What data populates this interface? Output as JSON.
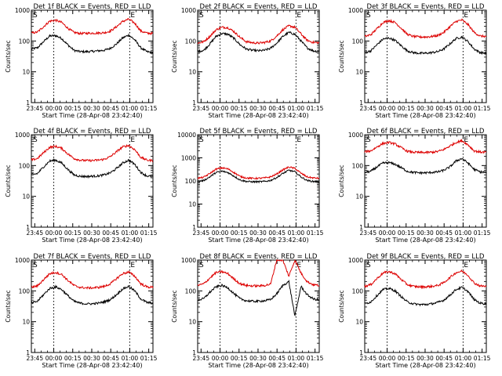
{
  "chart_data": [
    {
      "type": "line",
      "title": "Det 1f BLACK = Events, RED = LLD",
      "xlabel": "Start Time (28-Apr-08 23:42:40)",
      "ylabel": "Counts/sec",
      "ylim": [
        1,
        1000
      ],
      "yscale": "log",
      "x_ticks": [
        "23:45",
        "00:00",
        "00:15",
        "00:30",
        "00:45",
        "01:00",
        "01:15"
      ],
      "y_ticks": [
        "1",
        "10",
        "100",
        "1000"
      ],
      "markers": [
        "S",
        "E"
      ],
      "series": [
        {
          "name": "Events",
          "color": "#000000",
          "values": [
            55,
            60,
            95,
            145,
            150,
            120,
            75,
            50,
            45,
            45,
            46,
            48,
            50,
            58,
            80,
            125,
            155,
            110,
            60,
            45,
            42
          ]
        },
        {
          "name": "LLD",
          "color": "#dd0000",
          "values": [
            180,
            195,
            290,
            440,
            470,
            400,
            260,
            190,
            175,
            178,
            180,
            182,
            185,
            210,
            290,
            430,
            510,
            380,
            210,
            180,
            175
          ]
        }
      ]
    },
    {
      "type": "line",
      "title": "Det 2f BLACK = Events, RED = LLD",
      "xlabel": "Start Time (28-Apr-08 23:42:40)",
      "ylabel": "Counts/sec",
      "ylim": [
        1,
        1000
      ],
      "yscale": "log",
      "x_ticks": [
        "23:45",
        "00:00",
        "00:15",
        "00:30",
        "00:45",
        "01:00",
        "01:15"
      ],
      "y_ticks": [
        "1",
        "10",
        "100",
        "1000"
      ],
      "markers": [
        "S",
        "E"
      ],
      "series": [
        {
          "name": "Events",
          "color": "#000000",
          "values": [
            45,
            50,
            80,
            140,
            175,
            165,
            120,
            75,
            55,
            50,
            48,
            50,
            58,
            85,
            140,
            190,
            165,
            100,
            60,
            48,
            45
          ]
        },
        {
          "name": "LLD",
          "color": "#dd0000",
          "values": [
            85,
            95,
            140,
            230,
            280,
            270,
            200,
            130,
            95,
            88,
            85,
            90,
            100,
            145,
            230,
            310,
            280,
            170,
            105,
            90,
            88
          ]
        }
      ]
    },
    {
      "type": "line",
      "title": "Det 3f BLACK = Events, RED = LLD",
      "xlabel": "Start Time (28-Apr-08 23:42:40)",
      "ylabel": "Counts/sec",
      "ylim": [
        1,
        1000
      ],
      "yscale": "log",
      "x_ticks": [
        "23:45",
        "00:00",
        "00:15",
        "00:30",
        "00:45",
        "01:00",
        "01:15"
      ],
      "y_ticks": [
        "1",
        "10",
        "100",
        "1000"
      ],
      "markers": [
        "S",
        "E"
      ],
      "series": [
        {
          "name": "Events",
          "color": "#000000",
          "values": [
            42,
            48,
            75,
            115,
            125,
            105,
            70,
            48,
            42,
            40,
            40,
            42,
            45,
            55,
            80,
            120,
            135,
            95,
            55,
            42,
            40
          ]
        },
        {
          "name": "LLD",
          "color": "#dd0000",
          "values": [
            140,
            160,
            250,
            400,
            460,
            400,
            260,
            165,
            140,
            135,
            135,
            140,
            150,
            190,
            290,
            430,
            480,
            340,
            190,
            145,
            140
          ]
        }
      ]
    },
    {
      "type": "line",
      "title": "Det 4f BLACK = Events, RED = LLD",
      "xlabel": "Start Time (28-Apr-08 23:42:40)",
      "ylabel": "Counts/sec",
      "ylim": [
        1,
        1000
      ],
      "yscale": "log",
      "x_ticks": [
        "23:45",
        "00:00",
        "00:15",
        "00:30",
        "00:45",
        "01:00",
        "01:15"
      ],
      "y_ticks": [
        "1",
        "10",
        "100",
        "1000"
      ],
      "markers": [
        "S",
        "E"
      ],
      "series": [
        {
          "name": "Events",
          "color": "#000000",
          "values": [
            50,
            55,
            90,
            140,
            150,
            120,
            75,
            50,
            45,
            44,
            45,
            46,
            50,
            58,
            80,
            120,
            150,
            110,
            60,
            46,
            44
          ]
        },
        {
          "name": "LLD",
          "color": "#dd0000",
          "values": [
            150,
            170,
            260,
            390,
            420,
            360,
            240,
            170,
            150,
            145,
            145,
            150,
            160,
            195,
            280,
            400,
            450,
            330,
            185,
            150,
            145
          ]
        }
      ]
    },
    {
      "type": "line",
      "title": "Det 5f BLACK = Events, RED = LLD",
      "xlabel": "Start Time (28-Apr-08 23:42:40)",
      "ylabel": "Counts/sec",
      "ylim": [
        1,
        10000
      ],
      "yscale": "log",
      "x_ticks": [
        "23:45",
        "00:00",
        "00:15",
        "00:30",
        "00:45",
        "01:00",
        "01:15"
      ],
      "y_ticks": [
        "1",
        "10",
        "100",
        "1000",
        "10000"
      ],
      "markers": [
        "S",
        "E"
      ],
      "series": [
        {
          "name": "Events",
          "color": "#000000",
          "values": [
            95,
            105,
            150,
            230,
            265,
            230,
            160,
            110,
            95,
            92,
            92,
            95,
            105,
            140,
            210,
            290,
            250,
            150,
            105,
            95,
            92
          ]
        },
        {
          "name": "LLD",
          "color": "#dd0000",
          "values": [
            130,
            145,
            210,
            320,
            370,
            330,
            230,
            155,
            135,
            130,
            130,
            135,
            150,
            200,
            300,
            400,
            350,
            215,
            150,
            135,
            130
          ]
        }
      ]
    },
    {
      "type": "line",
      "title": "Det 6f BLACK = Events, RED = LLD",
      "xlabel": "Start Time (28-Apr-08 23:42:40)",
      "ylabel": "Counts/sec",
      "ylim": [
        1,
        1000
      ],
      "yscale": "log",
      "x_ticks": [
        "23:45",
        "00:00",
        "00:15",
        "00:30",
        "00:45",
        "01:00",
        "01:15"
      ],
      "y_ticks": [
        "1",
        "10",
        "100",
        "1000"
      ],
      "markers": [
        "S",
        "E"
      ],
      "series": [
        {
          "name": "Events",
          "color": "#000000",
          "values": [
            60,
            65,
            90,
            120,
            125,
            110,
            85,
            65,
            60,
            58,
            58,
            60,
            62,
            70,
            90,
            140,
            170,
            120,
            75,
            62,
            60
          ]
        },
        {
          "name": "LLD",
          "color": "#dd0000",
          "values": [
            280,
            300,
            400,
            520,
            560,
            500,
            380,
            290,
            270,
            265,
            265,
            270,
            285,
            330,
            430,
            560,
            640,
            470,
            300,
            275,
            270
          ]
        }
      ]
    },
    {
      "type": "line",
      "title": "Det 7f BLACK = Events, RED = LLD",
      "xlabel": "Start Time (28-Apr-08 23:42:40)",
      "ylabel": "Counts/sec",
      "ylim": [
        1,
        1000
      ],
      "yscale": "log",
      "x_ticks": [
        "23:45",
        "00:00",
        "00:15",
        "00:30",
        "00:45",
        "01:00",
        "01:15"
      ],
      "y_ticks": [
        "1",
        "10",
        "100",
        "1000"
      ],
      "markers": [
        "S",
        "E"
      ],
      "series": [
        {
          "name": "Events",
          "color": "#000000",
          "values": [
            40,
            46,
            75,
            120,
            135,
            110,
            70,
            46,
            40,
            38,
            38,
            40,
            44,
            52,
            75,
            115,
            140,
            100,
            55,
            42,
            40
          ]
        },
        {
          "name": "LLD",
          "color": "#dd0000",
          "values": [
            130,
            145,
            230,
            360,
            400,
            340,
            220,
            150,
            130,
            125,
            125,
            130,
            140,
            170,
            250,
            360,
            410,
            300,
            170,
            135,
            130
          ]
        }
      ]
    },
    {
      "type": "line",
      "title": "Det 8f BLACK = Events, RED = LLD",
      "xlabel": "Start Time (28-Apr-08 23:42:40)",
      "ylabel": "Counts/sec",
      "ylim": [
        1,
        1000
      ],
      "yscale": "log",
      "x_ticks": [
        "23:45",
        "00:00",
        "00:15",
        "00:30",
        "00:45",
        "01:00",
        "01:15"
      ],
      "y_ticks": [
        "1",
        "10",
        "100",
        "1000"
      ],
      "markers": [
        "S",
        "E"
      ],
      "series": [
        {
          "name": "Events",
          "color": "#000000",
          "values": [
            50,
            56,
            90,
            135,
            150,
            125,
            80,
            55,
            48,
            46,
            46,
            48,
            52,
            80,
            150,
            200,
            15,
            140,
            75,
            55,
            50
          ]
        },
        {
          "name": "LLD",
          "color": "#dd0000",
          "values": [
            150,
            170,
            260,
            390,
            420,
            360,
            240,
            170,
            150,
            145,
            145,
            150,
            165,
            1000,
            1000,
            300,
            1000,
            380,
            200,
            160,
            150
          ]
        }
      ]
    },
    {
      "type": "line",
      "title": "Det 9f BLACK = Events, RED = LLD",
      "xlabel": "Start Time (28-Apr-08 23:42:40)",
      "ylabel": "Counts/sec",
      "ylim": [
        1,
        1000
      ],
      "yscale": "log",
      "x_ticks": [
        "23:45",
        "00:00",
        "00:15",
        "00:30",
        "00:45",
        "01:00",
        "01:15"
      ],
      "y_ticks": [
        "1",
        "10",
        "100",
        "1000"
      ],
      "markers": [
        "S",
        "E"
      ],
      "series": [
        {
          "name": "Events",
          "color": "#000000",
          "values": [
            38,
            44,
            70,
            110,
            120,
            100,
            65,
            44,
            38,
            36,
            36,
            38,
            42,
            50,
            72,
            110,
            130,
            95,
            52,
            40,
            38
          ]
        },
        {
          "name": "LLD",
          "color": "#dd0000",
          "values": [
            140,
            160,
            250,
            380,
            420,
            360,
            235,
            160,
            140,
            135,
            135,
            140,
            150,
            185,
            270,
            390,
            440,
            320,
            180,
            145,
            140
          ]
        }
      ]
    }
  ]
}
